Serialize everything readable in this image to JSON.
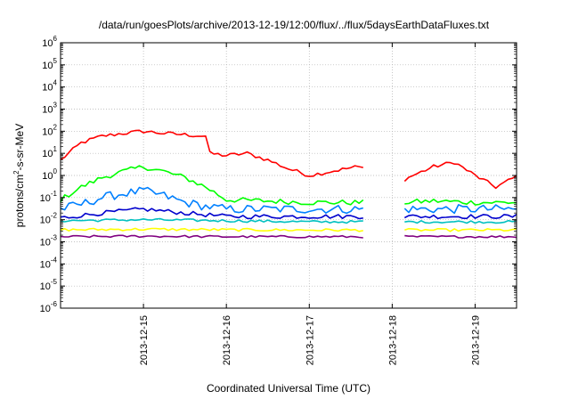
{
  "chart_data": {
    "type": "line",
    "title": "/data/run/goesPlots/archive/2013-12-19/12:00/flux/../flux/5daysEarthDataFluxes.txt",
    "xlabel": "Coordinated Universal Time (UTC)",
    "ylabel_parts": [
      "protons/cm",
      "2",
      "-s-sr-MeV"
    ],
    "xlim": [
      "2013-12-14T00:00",
      "2013-12-19T12:00"
    ],
    "x_ticks": [
      "2013-12-15",
      "2013-12-16",
      "2013-12-17",
      "2013-12-18",
      "2013-12-19"
    ],
    "y_scale": "log",
    "ylim": [
      1e-06,
      1000000.0
    ],
    "y_ticks": [
      {
        "value": 1e-06,
        "base": "10",
        "exp": "-6"
      },
      {
        "value": 1e-05,
        "base": "10",
        "exp": "-5"
      },
      {
        "value": 0.0001,
        "base": "10",
        "exp": "-4"
      },
      {
        "value": 0.001,
        "base": "10",
        "exp": "-3"
      },
      {
        "value": 0.01,
        "base": "10",
        "exp": "-2"
      },
      {
        "value": 0.1,
        "base": "10",
        "exp": "-1"
      },
      {
        "value": 1.0,
        "base": "10",
        "exp": "0"
      },
      {
        "value": 10.0,
        "base": "10",
        "exp": "1"
      },
      {
        "value": 100.0,
        "base": "10",
        "exp": "2"
      },
      {
        "value": 1000.0,
        "base": "10",
        "exp": "3"
      },
      {
        "value": 10000.0,
        "base": "10",
        "exp": "4"
      },
      {
        "value": 100000.0,
        "base": "10",
        "exp": "5"
      },
      {
        "value": 1000000.0,
        "base": "10",
        "exp": "6"
      }
    ],
    "grid": true,
    "data_gap": [
      "2013-12-17T16:00",
      "2013-12-18T03:00"
    ],
    "series": [
      {
        "color": "#ff0000",
        "noise": 0.09,
        "x": [
          "2013-12-14T00:00",
          "2013-12-14T06:00",
          "2013-12-14T12:00",
          "2013-12-14T18:00",
          "2013-12-15T00:00",
          "2013-12-15T06:00",
          "2013-12-15T12:00",
          "2013-12-15T18:00",
          "2013-12-15T19:00",
          "2013-12-16T00:00",
          "2013-12-16T06:00",
          "2013-12-16T12:00",
          "2013-12-16T18:00",
          "2013-12-17T00:00",
          "2013-12-17T06:00",
          "2013-12-17T14:00",
          "2013-12-18T03:00",
          "2013-12-18T06:00",
          "2013-12-18T12:00",
          "2013-12-18T18:00",
          "2013-12-19T00:00",
          "2013-12-19T06:00",
          "2013-12-19T12:00"
        ],
        "y": [
          5,
          30,
          60,
          80,
          100,
          80,
          70,
          60,
          10,
          8,
          10,
          5,
          2,
          1,
          1.5,
          2.5,
          0.6,
          1,
          2.5,
          4,
          1,
          0.3,
          0.9
        ]
      },
      {
        "color": "#00ff00",
        "noise": 0.12,
        "x": [
          "2013-12-14T00:00",
          "2013-12-14T06:00",
          "2013-12-14T12:00",
          "2013-12-14T18:00",
          "2013-12-15T00:00",
          "2013-12-15T06:00",
          "2013-12-15T12:00",
          "2013-12-15T18:00",
          "2013-12-16T00:00",
          "2013-12-16T12:00",
          "2013-12-17T00:00",
          "2013-12-17T14:00",
          "2013-12-18T03:00",
          "2013-12-18T12:00",
          "2013-12-19T00:00",
          "2013-12-19T12:00"
        ],
        "y": [
          0.08,
          0.3,
          0.8,
          1.5,
          2.5,
          1.5,
          0.8,
          0.3,
          0.08,
          0.07,
          0.06,
          0.06,
          0.06,
          0.07,
          0.06,
          0.06
        ]
      },
      {
        "color": "#0080ff",
        "noise": 0.2,
        "x": [
          "2013-12-14T00:00",
          "2013-12-14T06:00",
          "2013-12-14T12:00",
          "2013-12-14T18:00",
          "2013-12-15T00:00",
          "2013-12-15T06:00",
          "2013-12-15T12:00",
          "2013-12-15T18:00",
          "2013-12-16T00:00",
          "2013-12-16T12:00",
          "2013-12-17T00:00",
          "2013-12-17T14:00",
          "2013-12-18T03:00",
          "2013-12-18T12:00",
          "2013-12-19T00:00",
          "2013-12-19T12:00"
        ],
        "y": [
          0.03,
          0.05,
          0.1,
          0.15,
          0.2,
          0.12,
          0.06,
          0.04,
          0.03,
          0.03,
          0.03,
          0.03,
          0.03,
          0.03,
          0.03,
          0.03
        ]
      },
      {
        "color": "#0000cd",
        "noise": 0.1,
        "x": [
          "2013-12-14T00:00",
          "2013-12-14T12:00",
          "2013-12-15T00:00",
          "2013-12-15T12:00",
          "2013-12-16T00:00",
          "2013-12-17T00:00",
          "2013-12-17T14:00",
          "2013-12-18T03:00",
          "2013-12-19T00:00",
          "2013-12-19T12:00"
        ],
        "y": [
          0.012,
          0.02,
          0.03,
          0.02,
          0.014,
          0.014,
          0.014,
          0.014,
          0.014,
          0.014
        ]
      },
      {
        "color": "#00c0c0",
        "noise": 0.06,
        "x": [
          "2013-12-14T00:00",
          "2013-12-15T00:00",
          "2013-12-16T00:00",
          "2013-12-17T00:00",
          "2013-12-17T14:00",
          "2013-12-18T03:00",
          "2013-12-19T00:00",
          "2013-12-19T12:00"
        ],
        "y": [
          0.009,
          0.01,
          0.009,
          0.008,
          0.008,
          0.008,
          0.008,
          0.008
        ]
      },
      {
        "color": "#ffff00",
        "noise": 0.06,
        "x": [
          "2013-12-14T00:00",
          "2013-12-15T00:00",
          "2013-12-16T00:00",
          "2013-12-17T00:00",
          "2013-12-17T14:00",
          "2013-12-18T03:00",
          "2013-12-19T00:00",
          "2013-12-19T12:00"
        ],
        "y": [
          0.0035,
          0.0037,
          0.0035,
          0.0034,
          0.0034,
          0.0034,
          0.0034,
          0.0034
        ]
      },
      {
        "color": "#800080",
        "noise": 0.05,
        "x": [
          "2013-12-14T00:00",
          "2013-12-15T00:00",
          "2013-12-16T00:00",
          "2013-12-17T00:00",
          "2013-12-17T14:00",
          "2013-12-18T03:00",
          "2013-12-19T00:00",
          "2013-12-19T12:00"
        ],
        "y": [
          0.0017,
          0.0018,
          0.0017,
          0.0017,
          0.0017,
          0.0017,
          0.0017,
          0.0017
        ]
      }
    ]
  }
}
